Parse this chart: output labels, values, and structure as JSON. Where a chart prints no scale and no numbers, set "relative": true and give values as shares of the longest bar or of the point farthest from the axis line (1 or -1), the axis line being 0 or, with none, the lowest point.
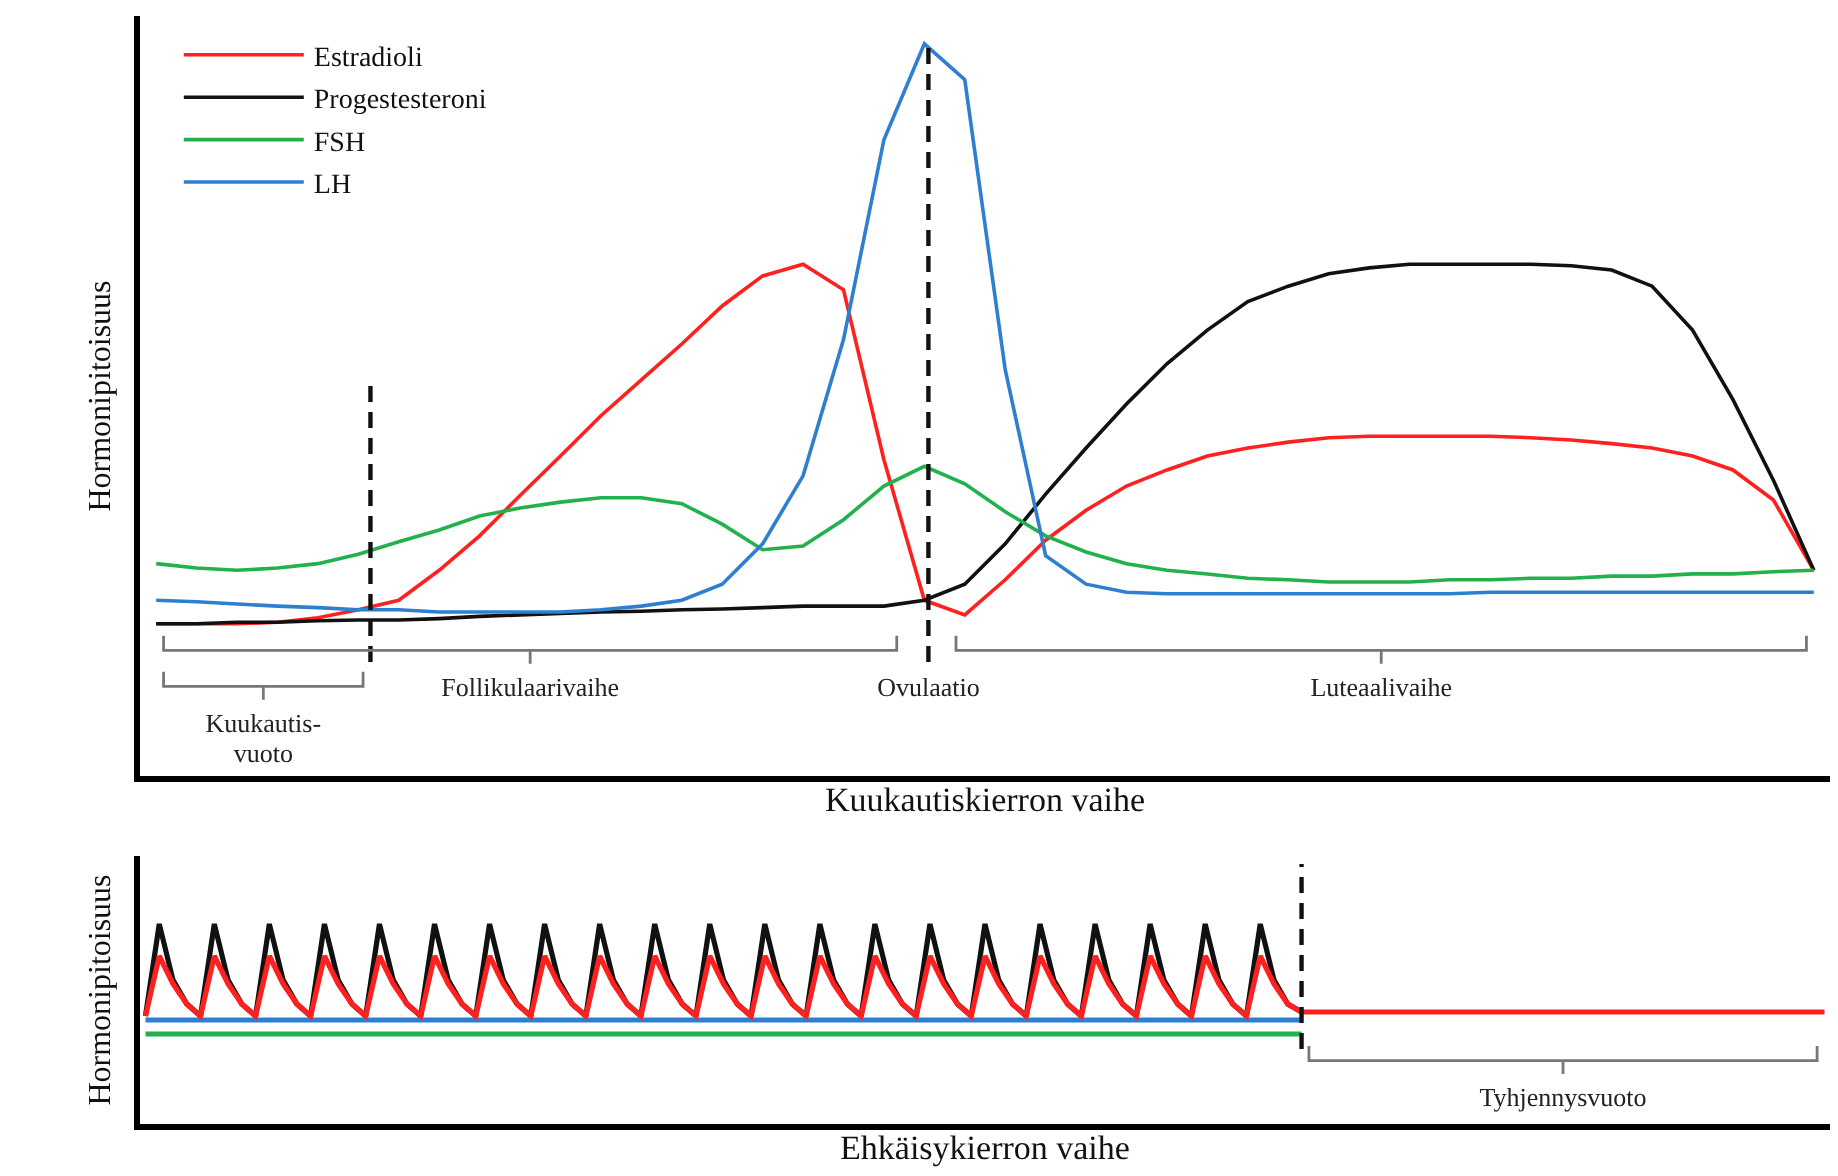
{
  "chart_data": [
    {
      "type": "line",
      "relative": true,
      "xlabel": "Kuukautiskierron vaihe",
      "ylabel": "Hormonipitoisuus",
      "legend": "top left",
      "categories": [
        null,
        null,
        null,
        null,
        null,
        null,
        null,
        null,
        null,
        null,
        null,
        null,
        null,
        null,
        null,
        null,
        null,
        null,
        null,
        null,
        null,
        null,
        null,
        null,
        null,
        null,
        null,
        null,
        null,
        null,
        null,
        null,
        null,
        null,
        null,
        null,
        null,
        null,
        null,
        null,
        null,
        null
      ],
      "series": [
        {
          "name": "Estradioli",
          "color": "#ff2020",
          "values": [
            0.208,
            0.208,
            0.208,
            0.21,
            0.216,
            0.227,
            0.24,
            0.281,
            0.328,
            0.383,
            0.437,
            0.492,
            0.541,
            0.59,
            0.642,
            0.683,
            0.699,
            0.664,
            0.432,
            0.24,
            0.22,
            0.268,
            0.322,
            0.363,
            0.396,
            0.418,
            0.437,
            0.448,
            0.456,
            0.462,
            0.464,
            0.464,
            0.464,
            0.464,
            0.462,
            0.459,
            0.454,
            0.448,
            0.437,
            0.418,
            0.377,
            0.281
          ]
        },
        {
          "name": "Progestesteroni",
          "color": "#111111",
          "values": [
            0.208,
            0.208,
            0.21,
            0.21,
            0.212,
            0.213,
            0.213,
            0.215,
            0.218,
            0.22,
            0.222,
            0.224,
            0.225,
            0.227,
            0.228,
            0.23,
            0.232,
            0.232,
            0.232,
            0.24,
            0.262,
            0.317,
            0.385,
            0.448,
            0.508,
            0.563,
            0.609,
            0.648,
            0.669,
            0.686,
            0.694,
            0.699,
            0.699,
            0.699,
            0.699,
            0.697,
            0.691,
            0.669,
            0.609,
            0.514,
            0.404,
            0.281
          ]
        },
        {
          "name": "FSH",
          "color": "#22b14c",
          "values": [
            0.29,
            0.284,
            0.281,
            0.284,
            0.29,
            0.303,
            0.32,
            0.336,
            0.355,
            0.366,
            0.374,
            0.38,
            0.38,
            0.372,
            0.344,
            0.309,
            0.314,
            0.35,
            0.396,
            0.423,
            0.399,
            0.361,
            0.328,
            0.306,
            0.29,
            0.281,
            0.276,
            0.27,
            0.268,
            0.265,
            0.265,
            0.265,
            0.268,
            0.268,
            0.27,
            0.27,
            0.273,
            0.273,
            0.276,
            0.276,
            0.279,
            0.281
          ]
        },
        {
          "name": "LH",
          "color": "#2f7fd0",
          "values": [
            0.24,
            0.238,
            0.235,
            0.232,
            0.23,
            0.227,
            0.227,
            0.224,
            0.224,
            0.224,
            0.224,
            0.227,
            0.232,
            0.24,
            0.262,
            0.317,
            0.41,
            0.596,
            0.869,
            1,
            0.951,
            0.555,
            0.301,
            0.262,
            0.251,
            0.249,
            0.249,
            0.249,
            0.249,
            0.249,
            0.249,
            0.249,
            0.249,
            0.251,
            0.251,
            0.251,
            0.251,
            0.251,
            0.251,
            0.251,
            0.251,
            0.251
          ]
        }
      ],
      "annotations": [
        "Kuukautis-\nvuoto",
        "Follikulaarivaihe",
        "Ovulaatio",
        "Luteaalivaihe"
      ]
    },
    {
      "type": "line",
      "relative": true,
      "xlabel": "Ehkäisykierron vaihe",
      "ylabel": "Hormonipitoisuus",
      "legend": false,
      "categories": [
        null,
        null,
        null,
        null,
        null,
        null,
        null,
        null,
        null,
        null,
        null,
        null,
        null,
        null,
        null,
        null,
        null,
        null,
        null,
        null,
        null,
        null,
        null,
        null,
        null,
        null,
        null,
        null,
        null,
        null,
        null,
        null,
        null,
        null,
        null,
        null,
        null,
        null,
        null,
        null,
        null,
        null,
        null,
        null,
        null,
        null,
        null,
        null,
        null,
        null,
        null,
        null,
        null,
        null,
        null,
        null,
        null,
        null,
        null,
        null,
        null,
        null,
        null,
        null,
        null,
        null,
        null,
        null,
        null,
        null,
        null,
        null,
        null,
        null,
        null,
        null,
        null,
        null,
        null,
        null,
        null,
        null,
        null,
        null,
        null,
        null,
        null,
        null,
        null,
        null,
        null,
        null,
        null,
        null,
        null,
        null,
        null,
        null,
        null,
        null,
        null,
        null,
        null,
        null,
        null,
        null,
        null,
        null,
        null,
        null,
        null,
        null,
        null,
        null,
        null,
        null,
        null,
        null,
        null,
        null,
        null,
        null,
        null
      ],
      "series": [
        {
          "color": "#22b14c",
          "values": [
            0.45,
            0.45,
            0.45,
            0.45,
            0.45,
            0.45,
            0.45,
            0.45,
            0.45,
            0.45,
            0.45,
            0.45,
            0.45,
            0.45,
            0.45,
            0.45,
            0.45,
            0.45,
            0.45,
            0.45,
            0.45,
            0.45,
            0.45,
            0.45,
            0.45,
            0.45,
            0.45,
            0.45,
            0.45,
            0.45,
            0.45,
            0.45,
            0.45,
            0.45,
            0.45,
            0.45,
            0.45,
            0.45,
            0.45,
            0.45,
            0.45,
            0.45,
            0.45,
            0.45,
            0.45,
            0.45,
            0.45,
            0.45,
            0.45,
            0.45,
            0.45,
            0.45,
            0.45,
            0.45,
            0.45,
            0.45,
            0.45,
            0.45,
            0.45,
            0.45,
            0.45,
            0.45,
            0.45,
            0.45,
            0.45,
            0.45,
            0.45,
            0.45,
            0.45,
            0.45,
            0.45,
            0.45,
            0.45,
            0.45,
            0.45,
            0.45,
            0.45,
            0.45,
            0.45,
            0.45,
            0.45,
            0.45,
            0.45,
            0.45,
            0.45,
            null,
            null,
            null,
            null,
            null,
            null,
            null,
            null,
            null,
            null,
            null,
            null,
            null,
            null,
            null,
            null,
            null,
            null,
            null,
            null,
            null,
            null,
            null,
            null,
            null,
            null,
            null,
            null,
            null,
            null,
            null,
            null,
            null,
            null,
            null,
            null,
            null,
            null
          ]
        },
        {
          "color": "#2f7fd0",
          "values": [
            0.52,
            0.52,
            0.52,
            0.52,
            0.52,
            0.52,
            0.52,
            0.52,
            0.52,
            0.52,
            0.52,
            0.52,
            0.52,
            0.52,
            0.52,
            0.52,
            0.52,
            0.52,
            0.52,
            0.52,
            0.52,
            0.52,
            0.52,
            0.52,
            0.52,
            0.52,
            0.52,
            0.52,
            0.52,
            0.52,
            0.52,
            0.52,
            0.52,
            0.52,
            0.52,
            0.52,
            0.52,
            0.52,
            0.52,
            0.52,
            0.52,
            0.52,
            0.52,
            0.52,
            0.52,
            0.52,
            0.52,
            0.52,
            0.52,
            0.52,
            0.52,
            0.52,
            0.52,
            0.52,
            0.52,
            0.52,
            0.52,
            0.52,
            0.52,
            0.52,
            0.52,
            0.52,
            0.52,
            0.52,
            0.52,
            0.52,
            0.52,
            0.52,
            0.52,
            0.52,
            0.52,
            0.52,
            0.52,
            0.52,
            0.52,
            0.52,
            0.52,
            0.52,
            0.52,
            0.52,
            0.52,
            0.52,
            0.52,
            0.52,
            0.52,
            null,
            null,
            null,
            null,
            null,
            null,
            null,
            null,
            null,
            null,
            null,
            null,
            null,
            null,
            null,
            null,
            null,
            null,
            null,
            null,
            null,
            null,
            null,
            null,
            null,
            null,
            null,
            null,
            null,
            null,
            null,
            null,
            null,
            null,
            null,
            null,
            null,
            null
          ]
        },
        {
          "color": "#111111",
          "values": [
            0.54,
            1,
            0.72,
            0.6,
            0.54,
            1,
            0.72,
            0.6,
            0.54,
            1,
            0.72,
            0.6,
            0.54,
            1,
            0.72,
            0.6,
            0.54,
            1,
            0.72,
            0.6,
            0.54,
            1,
            0.72,
            0.6,
            0.54,
            1,
            0.72,
            0.6,
            0.54,
            1,
            0.72,
            0.6,
            0.54,
            1,
            0.72,
            0.6,
            0.54,
            1,
            0.72,
            0.6,
            0.54,
            1,
            0.72,
            0.6,
            0.54,
            1,
            0.72,
            0.6,
            0.54,
            1,
            0.72,
            0.6,
            0.54,
            1,
            0.72,
            0.6,
            0.54,
            1,
            0.72,
            0.6,
            0.54,
            1,
            0.72,
            0.6,
            0.54,
            1,
            0.72,
            0.6,
            0.54,
            1,
            0.72,
            0.6,
            0.54,
            1,
            0.72,
            0.6,
            0.54,
            1,
            0.72,
            0.6,
            0.54,
            1,
            0.72,
            0.6,
            0.56,
            null,
            null,
            null,
            null,
            null,
            null,
            null,
            null,
            null,
            null,
            null,
            null,
            null,
            null,
            null,
            null,
            null,
            null,
            null,
            null,
            null,
            null,
            null,
            null,
            null,
            null,
            null,
            null,
            null,
            null,
            null,
            null,
            null,
            null,
            null,
            null,
            null,
            null
          ]
        },
        {
          "color": "#ff2020",
          "values": [
            0.54,
            0.84,
            0.7,
            0.6,
            0.54,
            0.84,
            0.7,
            0.6,
            0.54,
            0.84,
            0.7,
            0.6,
            0.54,
            0.84,
            0.7,
            0.6,
            0.54,
            0.84,
            0.7,
            0.6,
            0.54,
            0.84,
            0.7,
            0.6,
            0.54,
            0.84,
            0.7,
            0.6,
            0.54,
            0.84,
            0.7,
            0.6,
            0.54,
            0.84,
            0.7,
            0.6,
            0.54,
            0.84,
            0.7,
            0.6,
            0.54,
            0.84,
            0.7,
            0.6,
            0.54,
            0.84,
            0.7,
            0.6,
            0.54,
            0.84,
            0.7,
            0.6,
            0.54,
            0.84,
            0.7,
            0.6,
            0.54,
            0.84,
            0.7,
            0.6,
            0.54,
            0.84,
            0.7,
            0.6,
            0.54,
            0.84,
            0.7,
            0.6,
            0.54,
            0.84,
            0.7,
            0.6,
            0.54,
            0.84,
            0.7,
            0.6,
            0.54,
            0.84,
            0.7,
            0.6,
            0.54,
            0.84,
            0.7,
            0.6,
            0.56,
            0.56,
            0.56,
            0.56,
            0.56,
            0.56,
            0.56,
            0.56,
            0.56,
            0.56,
            0.56,
            0.56,
            0.56,
            0.56,
            0.56,
            0.56,
            0.56,
            0.56,
            0.56,
            0.56,
            0.56,
            0.56,
            0.56,
            0.56,
            0.56,
            0.56,
            0.56,
            0.56,
            0.56,
            0.56,
            0.56,
            0.56,
            0.56,
            0.56,
            0.56,
            0.56,
            0.56,
            0.56,
            0.56
          ]
        }
      ],
      "annotations": [
        "Tyhjennysvuoto"
      ]
    }
  ]
}
